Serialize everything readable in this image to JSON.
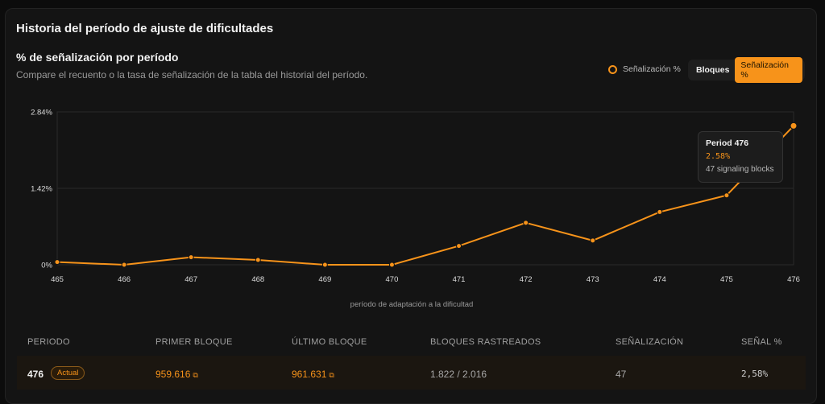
{
  "header": {
    "title": "Historia del período de ajuste de dificultades",
    "section_title": "% de señalización por período",
    "description": "Compare el recuento o la tasa de señalización de la tabla del historial del período."
  },
  "legend": {
    "label": "Señalización %",
    "color": "#f7931a"
  },
  "toggle": {
    "option_blocks": "Bloques",
    "option_signal": "Señalización %",
    "selected": "Señalización %"
  },
  "tooltip": {
    "title": "Period 476",
    "value": "2.58%",
    "detail": "47 signaling blocks"
  },
  "chart_data": {
    "type": "line",
    "x": [
      465,
      466,
      467,
      468,
      469,
      470,
      471,
      472,
      473,
      474,
      475,
      476
    ],
    "y_ticks": [
      "2.84%",
      "1.42%",
      "0%"
    ],
    "ylim": [
      0,
      2.84
    ],
    "xlabel": "período de adaptación a la dificultad",
    "series": [
      {
        "color": "#f7931a",
        "values": [
          0.05,
          0.0,
          0.14,
          0.09,
          0.0,
          0.0,
          0.35,
          0.78,
          0.45,
          0.98,
          1.29,
          2.58
        ]
      }
    ]
  },
  "table": {
    "headers": [
      "PERIODO",
      "PRIMER BLOQUE",
      "ÚLTIMO BLOQUE",
      "BLOQUES RASTREADOS",
      "SEÑALIZACIÓN",
      "SEÑAL %"
    ],
    "rows": [
      {
        "period": "476",
        "badge": "Actual",
        "first_block": "959.616",
        "last_block": "961.631",
        "tracked": "1.822 / 2.016",
        "signaling": "47",
        "signal_pct": "2,58%"
      }
    ],
    "link_icon": "external-link-icon"
  }
}
